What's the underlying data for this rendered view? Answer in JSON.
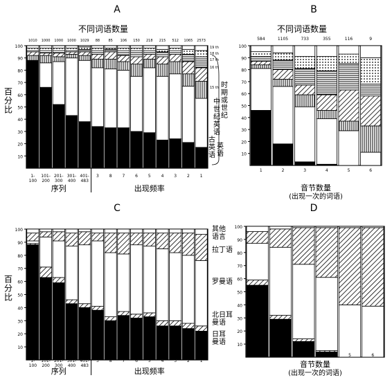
{
  "panels": [
    {
      "letter": "A",
      "top_title": "不同词语数量",
      "top_counts": [
        "1010",
        "1000",
        "1000",
        "1000",
        "1029",
        "88",
        "85",
        "106",
        "150",
        "218",
        "215",
        "512",
        "1065",
        "2573"
      ],
      "ylabel": "百分比",
      "yticks": [
        "100",
        "90",
        "80",
        "70",
        "60",
        "50",
        "40",
        "30",
        "20",
        "10"
      ],
      "xticks": [
        "1-\n100",
        "101-\n200",
        "201-\n300",
        "301-\n400",
        "401-\n483",
        "3",
        "8",
        "7",
        "6",
        "5",
        "4",
        "3",
        "2",
        "1"
      ],
      "xgroup_left": "序列",
      "xgroup_right": "出现频率",
      "right_labels": [
        "19 th",
        "18 th",
        "17 th",
        "16 th",
        "15 th",
        "中世纪英语",
        "古英语\n英语"
      ],
      "side_axis_label": "时期或世纪"
    },
    {
      "letter": "B",
      "top_title": "不同词语数量",
      "top_counts": [
        "584",
        "1105",
        "733",
        "355",
        "116",
        "9"
      ],
      "yticks": [
        "100",
        "90",
        "80",
        "70",
        "60",
        "50",
        "40",
        "30",
        "20",
        "10"
      ],
      "xticks": [
        "1",
        "2",
        "3",
        "4",
        "5",
        "6"
      ],
      "xlabel": "音节数量",
      "xlabel2": "(出现一次的词语)"
    },
    {
      "letter": "C",
      "ylabel": "百分比",
      "yticks": [
        "100",
        "90",
        "80",
        "70",
        "60",
        "50",
        "40",
        "30",
        "20",
        "10"
      ],
      "xticks": [
        "1-\n100",
        "101-\n200",
        "201-\n300",
        "301-\n400",
        "401-\n483",
        "3",
        "8",
        "7",
        "6",
        "5",
        "4",
        "3",
        "2",
        "1"
      ],
      "xgroup_left": "序列",
      "xgroup_right": "出现频率",
      "right_labels": [
        "其他\n语言",
        "拉丁语",
        "罗曼语",
        "北日耳\n曼语",
        "日耳\n曼语"
      ]
    },
    {
      "letter": "D",
      "yticks": [
        "100",
        "90",
        "80",
        "70",
        "60",
        "50",
        "40",
        "30",
        "20",
        "10"
      ],
      "xticks": [
        "1",
        "2",
        "3",
        "4",
        "5",
        "6"
      ],
      "xlabel": "音节数量",
      "xlabel2": "(出现一次的词语)"
    }
  ],
  "chart_data": [
    {
      "type": "bar",
      "panel": "A",
      "stacked": true,
      "categories": [
        "1-100",
        "101-200",
        "201-300",
        "301-400",
        "401-483",
        "3",
        "8",
        "7",
        "6",
        "5",
        "4",
        "3",
        "2",
        "1"
      ],
      "ylim": [
        0,
        100
      ],
      "series": [
        {
          "name": "古英语",
          "pattern": "black",
          "values": [
            88,
            66,
            52,
            43,
            38,
            34,
            33,
            33,
            30,
            29,
            23,
            24,
            21,
            17
          ]
        },
        {
          "name": "中世纪英语",
          "pattern": "white",
          "values": [
            0,
            20,
            35,
            47,
            50,
            48,
            48,
            47,
            45,
            53,
            52,
            53,
            46,
            40
          ]
        },
        {
          "name": "15 th",
          "pattern": "vertical",
          "values": [
            4,
            6,
            4,
            3,
            4,
            7,
            8,
            7,
            10,
            7,
            10,
            10,
            10,
            14
          ]
        },
        {
          "name": "16 th",
          "pattern": "diagonal",
          "values": [
            3,
            2,
            3,
            2,
            3,
            4,
            6,
            5,
            6,
            4,
            6,
            6,
            10,
            11
          ]
        },
        {
          "name": "17 th",
          "pattern": "horizontal",
          "values": [
            1,
            2,
            2,
            1,
            2,
            3,
            2,
            4,
            5,
            3,
            4,
            3,
            6,
            9
          ]
        },
        {
          "name": "18 th",
          "pattern": "dots",
          "values": [
            2,
            2,
            2,
            2,
            2,
            2,
            1,
            2,
            2,
            2,
            2,
            2,
            4,
            5
          ]
        },
        {
          "name": "19 th",
          "pattern": "white",
          "values": [
            2,
            2,
            2,
            2,
            1,
            2,
            2,
            2,
            2,
            2,
            3,
            2,
            3,
            4
          ]
        }
      ]
    },
    {
      "type": "bar",
      "panel": "B",
      "stacked": true,
      "categories": [
        "1",
        "2",
        "3",
        "4",
        "5",
        "6"
      ],
      "ylim": [
        0,
        100
      ],
      "series": [
        {
          "pattern": "black",
          "values": [
            46,
            18,
            3,
            1,
            0,
            0
          ]
        },
        {
          "pattern": "white",
          "values": [
            35,
            48,
            46,
            38,
            29,
            11
          ]
        },
        {
          "pattern": "vertical",
          "values": [
            3,
            6,
            10,
            7,
            8,
            22
          ]
        },
        {
          "pattern": "diagonal",
          "values": [
            3,
            8,
            8,
            13,
            26,
            25
          ]
        },
        {
          "pattern": "horizontal",
          "values": [
            4,
            8,
            14,
            20,
            22,
            10
          ]
        },
        {
          "pattern": "dots",
          "values": [
            4,
            6,
            10,
            12,
            8,
            22
          ]
        },
        {
          "pattern": "white",
          "values": [
            5,
            6,
            9,
            9,
            7,
            10
          ]
        }
      ]
    },
    {
      "type": "bar",
      "panel": "C",
      "stacked": true,
      "categories": [
        "1-100",
        "101-200",
        "201-300",
        "301-400",
        "401-483",
        "3",
        "8",
        "7",
        "6",
        "5",
        "4",
        "3",
        "2",
        "1"
      ],
      "ylim": [
        0,
        100
      ],
      "series": [
        {
          "name": "日耳曼语",
          "pattern": "black",
          "values": [
            88,
            63,
            59,
            43,
            40,
            38,
            30,
            34,
            32,
            33,
            26,
            26,
            24,
            22
          ]
        },
        {
          "name": "北日耳曼语",
          "pattern": "diagonal",
          "values": [
            1,
            8,
            4,
            3,
            3,
            3,
            3,
            3,
            3,
            3,
            4,
            4,
            4,
            4
          ]
        },
        {
          "name": "罗曼语",
          "pattern": "white",
          "values": [
            2,
            23,
            28,
            41,
            45,
            50,
            49,
            44,
            53,
            51,
            55,
            52,
            52,
            50
          ]
        },
        {
          "name": "拉丁语",
          "pattern": "diagonal",
          "values": [
            6,
            4,
            7,
            10,
            10,
            6,
            15,
            16,
            9,
            10,
            12,
            15,
            17,
            20
          ]
        },
        {
          "name": "其他语言",
          "pattern": "white",
          "values": [
            3,
            2,
            2,
            3,
            2,
            3,
            3,
            3,
            3,
            3,
            3,
            3,
            3,
            4
          ]
        }
      ]
    },
    {
      "type": "bar",
      "panel": "D",
      "stacked": true,
      "categories": [
        "1",
        "2",
        "3",
        "4",
        "5",
        "6"
      ],
      "ylim": [
        0,
        100
      ],
      "series": [
        {
          "pattern": "black",
          "values": [
            55,
            29,
            12,
            4,
            0,
            0
          ]
        },
        {
          "pattern": "diagonal",
          "values": [
            4,
            3,
            2,
            1,
            0,
            0
          ]
        },
        {
          "pattern": "white",
          "values": [
            28,
            52,
            57,
            56,
            40,
            39
          ]
        },
        {
          "pattern": "diagonal",
          "values": [
            9,
            14,
            28,
            38,
            59,
            60
          ]
        },
        {
          "pattern": "white",
          "values": [
            4,
            2,
            1,
            1,
            1,
            1
          ]
        }
      ]
    }
  ]
}
